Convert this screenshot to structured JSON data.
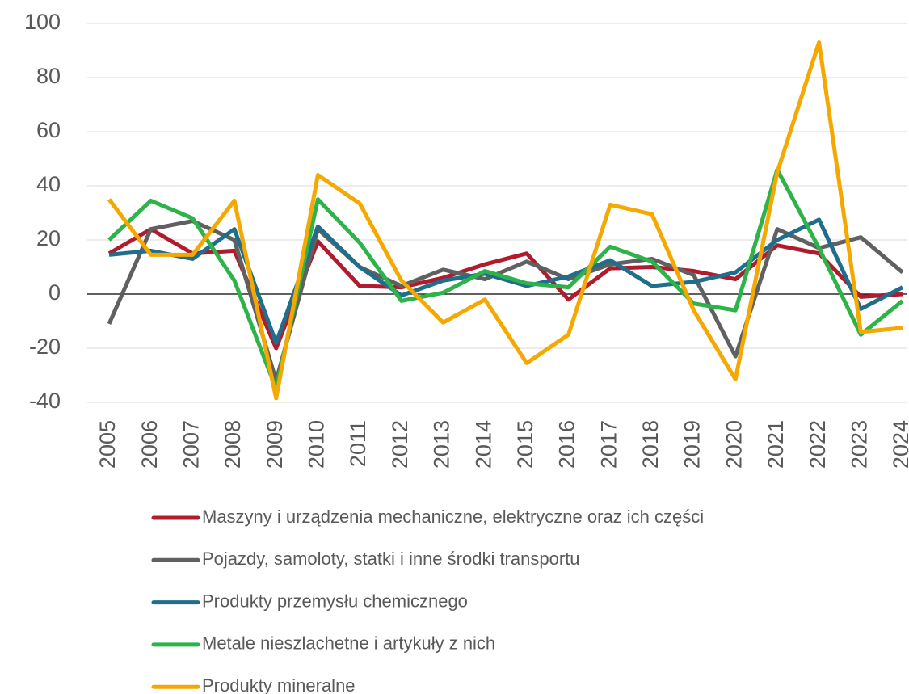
{
  "chart_data": {
    "type": "line",
    "categories": [
      "2005",
      "2006",
      "2007",
      "2008",
      "2009",
      "2010",
      "2011",
      "2012",
      "2013",
      "2014",
      "2015",
      "2016",
      "2017",
      "2018",
      "2019",
      "2020",
      "2021",
      "2022",
      "2023",
      "2024"
    ],
    "ylim": [
      -40,
      100
    ],
    "yticks": [
      -40,
      -20,
      0,
      20,
      40,
      60,
      80,
      100
    ],
    "grid": true,
    "legend": "bottom",
    "series": [
      {
        "name": "Maszyny i urządzenia mechaniczne, elektryczne oraz ich części",
        "color": "#b01c2e",
        "values": [
          15,
          24,
          15,
          16,
          -20,
          19.5,
          3,
          2.5,
          6,
          11,
          15,
          -2,
          9.5,
          10,
          8.5,
          5.5,
          18,
          15,
          -1,
          0
        ]
      },
      {
        "name": "Pojazdy, samoloty, statki i inne środki transportu",
        "color": "#606060",
        "values": [
          -11,
          24,
          27,
          20,
          -32,
          24,
          10,
          3,
          9,
          5.5,
          12,
          5.5,
          11,
          13,
          7,
          -23,
          24,
          17,
          21,
          8
        ]
      },
      {
        "name": "Produkty przemysłu chemicznego",
        "color": "#1f6e8c",
        "values": [
          14.5,
          16,
          13,
          24,
          -18,
          25,
          10,
          -0.5,
          5,
          7.5,
          3,
          6.5,
          12.5,
          3,
          4.5,
          8,
          20,
          27.5,
          -5.5,
          2.5
        ]
      },
      {
        "name": "Metale nieszlachetne i artykuły z nich",
        "color": "#2db34a",
        "values": [
          20,
          34.5,
          28,
          5,
          -35,
          35,
          19,
          -2.5,
          0.5,
          8.5,
          4,
          2.5,
          17.5,
          12,
          -3.5,
          -6,
          46,
          17,
          -15,
          -2.5
        ]
      },
      {
        "name": "Produkty mineralne",
        "color": "#f5a800",
        "values": [
          35,
          14.5,
          14.5,
          34.5,
          -38.5,
          44,
          33.5,
          5,
          -10.5,
          -2,
          -25.5,
          -15,
          33,
          29.5,
          -6,
          -31.5,
          45,
          93,
          -14,
          -12.5
        ]
      }
    ]
  }
}
